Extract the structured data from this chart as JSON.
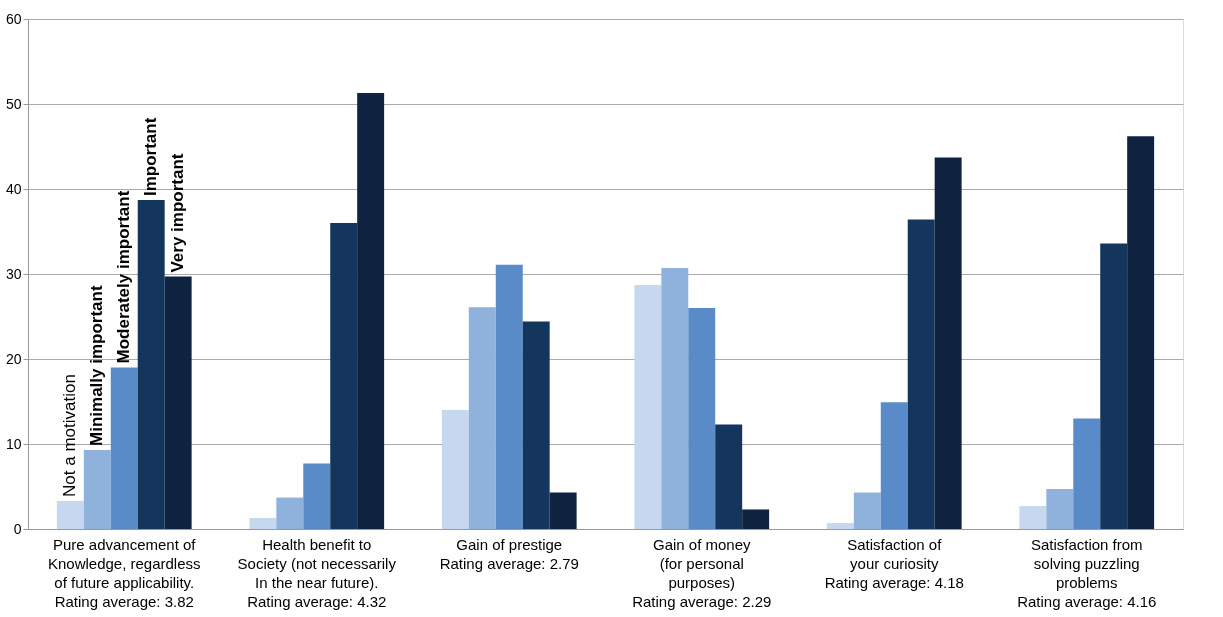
{
  "chart_data": {
    "type": "bar",
    "categories": [
      "Pure advancement of\nKnowledge, regardless\nof future applicability.\nRating average: 3.82",
      "Health benefit to\nSociety (not necessarily\nIn the near future).\nRating average: 4.32",
      "Gain of prestige\nRating average: 2.79",
      "Gain of money\n(for personal\npurposes)\nRating average: 2.29",
      "Satisfaction of\nyour curiosity\nRating average: 4.18",
      "Satisfaction from\nsolving puzzling\nproblems\nRating average: 4.16"
    ],
    "series": [
      {
        "name": "Not a motivation",
        "color": "#c5d8ef",
        "values": [
          3.3,
          1.3,
          14.0,
          28.7,
          0.7,
          2.7
        ]
      },
      {
        "name": "Minimally important",
        "color": "#8fb2dd",
        "values": [
          9.3,
          3.7,
          26.1,
          30.7,
          4.3,
          4.7
        ]
      },
      {
        "name": "Moderately important",
        "color": "#588bc8",
        "values": [
          19.0,
          7.7,
          31.1,
          26.0,
          14.9,
          13.0
        ]
      },
      {
        "name": "Important",
        "color": "#14365c",
        "values": [
          38.7,
          36.0,
          24.4,
          12.3,
          36.4,
          33.6
        ]
      },
      {
        "name": "Very important",
        "color": "#0f2340",
        "values": [
          29.7,
          51.3,
          4.3,
          2.3,
          43.7,
          46.2
        ]
      }
    ],
    "ylim": [
      0,
      60
    ],
    "yticks": [
      0,
      10,
      20,
      30,
      40,
      50,
      60
    ],
    "grid": "y",
    "legend": false
  }
}
